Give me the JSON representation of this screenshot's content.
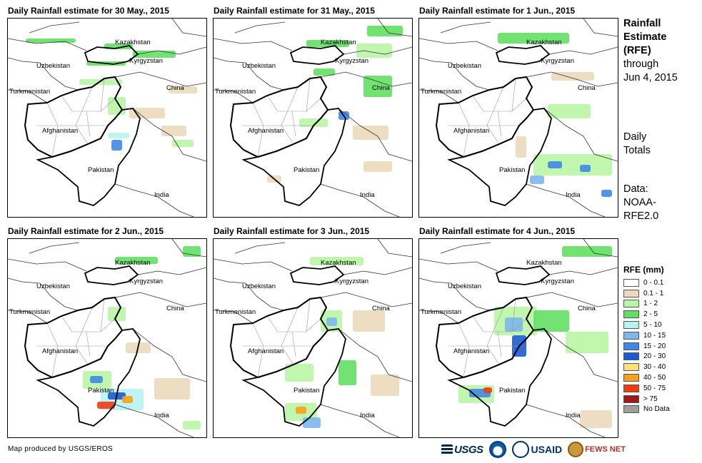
{
  "panels": [
    {
      "title": "Daily Rainfall estimate for 30 May., 2015"
    },
    {
      "title": "Daily Rainfall estimate for 31 May., 2015"
    },
    {
      "title": "Daily Rainfall estimate for 1 Jun., 2015"
    },
    {
      "title": "Daily Rainfall estimate for 2 Jun., 2015"
    },
    {
      "title": "Daily Rainfall estimate for 3 Jun., 2015"
    },
    {
      "title": "Daily Rainfall estimate for 4 Jun., 2015"
    }
  ],
  "map_labels": {
    "kazakhstan": "Kazakhstan",
    "uzbekistan": "Uzbekistan",
    "kyrgyzstan": "Kyrgyzstan",
    "turkmenistan": "Turkmenistan",
    "china": "China",
    "afghanistan": "Afghanistan",
    "pakistan": "Pakistan",
    "india": "India"
  },
  "side_panel": {
    "heading_line1": "Rainfall",
    "heading_line2": "Estimate",
    "heading_line3": "(RFE)",
    "through_line1": "through",
    "through_line2": "Jun 4, 2015",
    "daily_line1": "Daily",
    "daily_line2": "Totals",
    "data_line1": "Data:",
    "data_line2": "NOAA-",
    "data_line3": "RFE2.0"
  },
  "legend": {
    "title": "RFE (mm)",
    "items": [
      {
        "label": "0 - 0.1",
        "color": "#ffffff"
      },
      {
        "label": "0.1 - 1",
        "color": "#ead9bd"
      },
      {
        "label": "1 - 2",
        "color": "#b9f5a5"
      },
      {
        "label": "2 - 5",
        "color": "#63e063"
      },
      {
        "label": "5 - 10",
        "color": "#b7f3f3"
      },
      {
        "label": "10 - 15",
        "color": "#7fb6ee"
      },
      {
        "label": "15 - 20",
        "color": "#3f88e6"
      },
      {
        "label": "20 - 30",
        "color": "#1c5ad3"
      },
      {
        "label": "30 - 40",
        "color": "#fbe07a"
      },
      {
        "label": "40 - 50",
        "color": "#f7a11b"
      },
      {
        "label": "50 - 75",
        "color": "#f23b0f"
      },
      {
        "label": "> 75",
        "color": "#9e1a18"
      },
      {
        "label": "No Data",
        "color": "#9e9e9e"
      }
    ]
  },
  "credit": "Map produced by USGS/EROS",
  "logos": {
    "usgs": "USGS",
    "usaid": "USAID",
    "fews": "FEWS NET"
  },
  "rain": [
    [
      {
        "x": 25,
        "y": 28,
        "w": 70,
        "h": 6,
        "c": "#63e063"
      },
      {
        "x": 135,
        "y": 35,
        "w": 40,
        "h": 8,
        "c": "#63e063"
      },
      {
        "x": 110,
        "y": 60,
        "w": 55,
        "h": 6,
        "c": "#63e063"
      },
      {
        "x": 175,
        "y": 45,
        "w": 60,
        "h": 10,
        "c": "#63e063"
      },
      {
        "x": 100,
        "y": 85,
        "w": 60,
        "h": 8,
        "c": "#b9f5a5"
      },
      {
        "x": 225,
        "y": 95,
        "w": 40,
        "h": 10,
        "c": "#ead9bd"
      },
      {
        "x": 140,
        "y": 110,
        "w": 25,
        "h": 25,
        "c": "#b9f5a5"
      },
      {
        "x": 170,
        "y": 125,
        "w": 50,
        "h": 15,
        "c": "#ead9bd"
      },
      {
        "x": 145,
        "y": 170,
        "w": 15,
        "h": 15,
        "c": "#3f88e6"
      },
      {
        "x": 140,
        "y": 160,
        "w": 30,
        "h": 8,
        "c": "#b7f3f3"
      },
      {
        "x": 215,
        "y": 150,
        "w": 35,
        "h": 15,
        "c": "#ead9bd"
      },
      {
        "x": 230,
        "y": 170,
        "w": 30,
        "h": 10,
        "c": "#b9f5a5"
      }
    ],
    [
      {
        "x": 215,
        "y": 10,
        "w": 50,
        "h": 15,
        "c": "#63e063"
      },
      {
        "x": 130,
        "y": 30,
        "w": 60,
        "h": 10,
        "c": "#63e063"
      },
      {
        "x": 200,
        "y": 35,
        "w": 50,
        "h": 20,
        "c": "#b9f5a5"
      },
      {
        "x": 140,
        "y": 70,
        "w": 30,
        "h": 10,
        "c": "#63e063"
      },
      {
        "x": 210,
        "y": 80,
        "w": 40,
        "h": 30,
        "c": "#63e063"
      },
      {
        "x": 175,
        "y": 130,
        "w": 15,
        "h": 12,
        "c": "#3f88e6"
      },
      {
        "x": 120,
        "y": 140,
        "w": 40,
        "h": 12,
        "c": "#b9f5a5"
      },
      {
        "x": 195,
        "y": 150,
        "w": 50,
        "h": 20,
        "c": "#ead9bd"
      },
      {
        "x": 210,
        "y": 200,
        "w": 40,
        "h": 15,
        "c": "#ead9bd"
      },
      {
        "x": 75,
        "y": 220,
        "w": 20,
        "h": 10,
        "c": "#ead9bd"
      }
    ],
    [
      {
        "x": 110,
        "y": 20,
        "w": 100,
        "h": 15,
        "c": "#63e063"
      },
      {
        "x": 185,
        "y": 75,
        "w": 60,
        "h": 12,
        "c": "#ead9bd"
      },
      {
        "x": 180,
        "y": 120,
        "w": 60,
        "h": 20,
        "c": "#b9f5a5"
      },
      {
        "x": 160,
        "y": 190,
        "w": 110,
        "h": 30,
        "c": "#b9f5a5"
      },
      {
        "x": 180,
        "y": 200,
        "w": 20,
        "h": 10,
        "c": "#3f88e6"
      },
      {
        "x": 225,
        "y": 205,
        "w": 15,
        "h": 10,
        "c": "#3f88e6"
      },
      {
        "x": 155,
        "y": 220,
        "w": 20,
        "h": 12,
        "c": "#7fb6ee"
      },
      {
        "x": 255,
        "y": 240,
        "w": 15,
        "h": 10,
        "c": "#3f88e6"
      },
      {
        "x": 135,
        "y": 165,
        "w": 15,
        "h": 30,
        "c": "#ead9bd"
      }
    ],
    [
      {
        "x": 150,
        "y": 25,
        "w": 60,
        "h": 10,
        "c": "#63e063"
      },
      {
        "x": 245,
        "y": 10,
        "w": 25,
        "h": 15,
        "c": "#63e063"
      },
      {
        "x": 140,
        "y": 95,
        "w": 25,
        "h": 20,
        "c": "#b9f5a5"
      },
      {
        "x": 165,
        "y": 145,
        "w": 35,
        "h": 15,
        "c": "#ead9bd"
      },
      {
        "x": 105,
        "y": 185,
        "w": 40,
        "h": 25,
        "c": "#b9f5a5"
      },
      {
        "x": 115,
        "y": 192,
        "w": 18,
        "h": 10,
        "c": "#3f88e6"
      },
      {
        "x": 130,
        "y": 210,
        "w": 60,
        "h": 30,
        "c": "#b7f3f3"
      },
      {
        "x": 140,
        "y": 215,
        "w": 25,
        "h": 10,
        "c": "#1c5ad3"
      },
      {
        "x": 125,
        "y": 228,
        "w": 25,
        "h": 10,
        "c": "#f23b0f"
      },
      {
        "x": 160,
        "y": 220,
        "w": 15,
        "h": 10,
        "c": "#f7a11b"
      },
      {
        "x": 205,
        "y": 195,
        "w": 50,
        "h": 30,
        "c": "#ead9bd"
      },
      {
        "x": 245,
        "y": 255,
        "w": 25,
        "h": 12,
        "c": "#b9f5a5"
      }
    ],
    [
      {
        "x": 135,
        "y": 25,
        "w": 75,
        "h": 12,
        "c": "#b9f5a5"
      },
      {
        "x": 150,
        "y": 100,
        "w": 30,
        "h": 30,
        "c": "#b9f5a5"
      },
      {
        "x": 158,
        "y": 110,
        "w": 15,
        "h": 12,
        "c": "#7fb6ee"
      },
      {
        "x": 195,
        "y": 100,
        "w": 45,
        "h": 30,
        "c": "#ead9bd"
      },
      {
        "x": 100,
        "y": 175,
        "w": 40,
        "h": 25,
        "c": "#b9f5a5"
      },
      {
        "x": 175,
        "y": 170,
        "w": 25,
        "h": 35,
        "c": "#63e063"
      },
      {
        "x": 100,
        "y": 230,
        "w": 45,
        "h": 25,
        "c": "#b9f5a5"
      },
      {
        "x": 115,
        "y": 235,
        "w": 15,
        "h": 10,
        "c": "#f7a11b"
      },
      {
        "x": 125,
        "y": 250,
        "w": 25,
        "h": 15,
        "c": "#7fb6ee"
      },
      {
        "x": 220,
        "y": 190,
        "w": 40,
        "h": 30,
        "c": "#ead9bd"
      }
    ],
    [
      {
        "x": 200,
        "y": 10,
        "w": 70,
        "h": 15,
        "c": "#63e063"
      },
      {
        "x": 105,
        "y": 95,
        "w": 60,
        "h": 40,
        "c": "#b9f5a5"
      },
      {
        "x": 120,
        "y": 110,
        "w": 25,
        "h": 20,
        "c": "#7fb6ee"
      },
      {
        "x": 130,
        "y": 135,
        "w": 20,
        "h": 30,
        "c": "#1c5ad3"
      },
      {
        "x": 160,
        "y": 100,
        "w": 50,
        "h": 30,
        "c": "#63e063"
      },
      {
        "x": 205,
        "y": 130,
        "w": 60,
        "h": 30,
        "c": "#b9f5a5"
      },
      {
        "x": 55,
        "y": 205,
        "w": 50,
        "h": 25,
        "c": "#b9f5a5"
      },
      {
        "x": 70,
        "y": 210,
        "w": 30,
        "h": 12,
        "c": "#3f88e6"
      },
      {
        "x": 90,
        "y": 208,
        "w": 12,
        "h": 8,
        "c": "#f23b0f"
      },
      {
        "x": 225,
        "y": 240,
        "w": 45,
        "h": 25,
        "c": "#ead9bd"
      }
    ]
  ]
}
